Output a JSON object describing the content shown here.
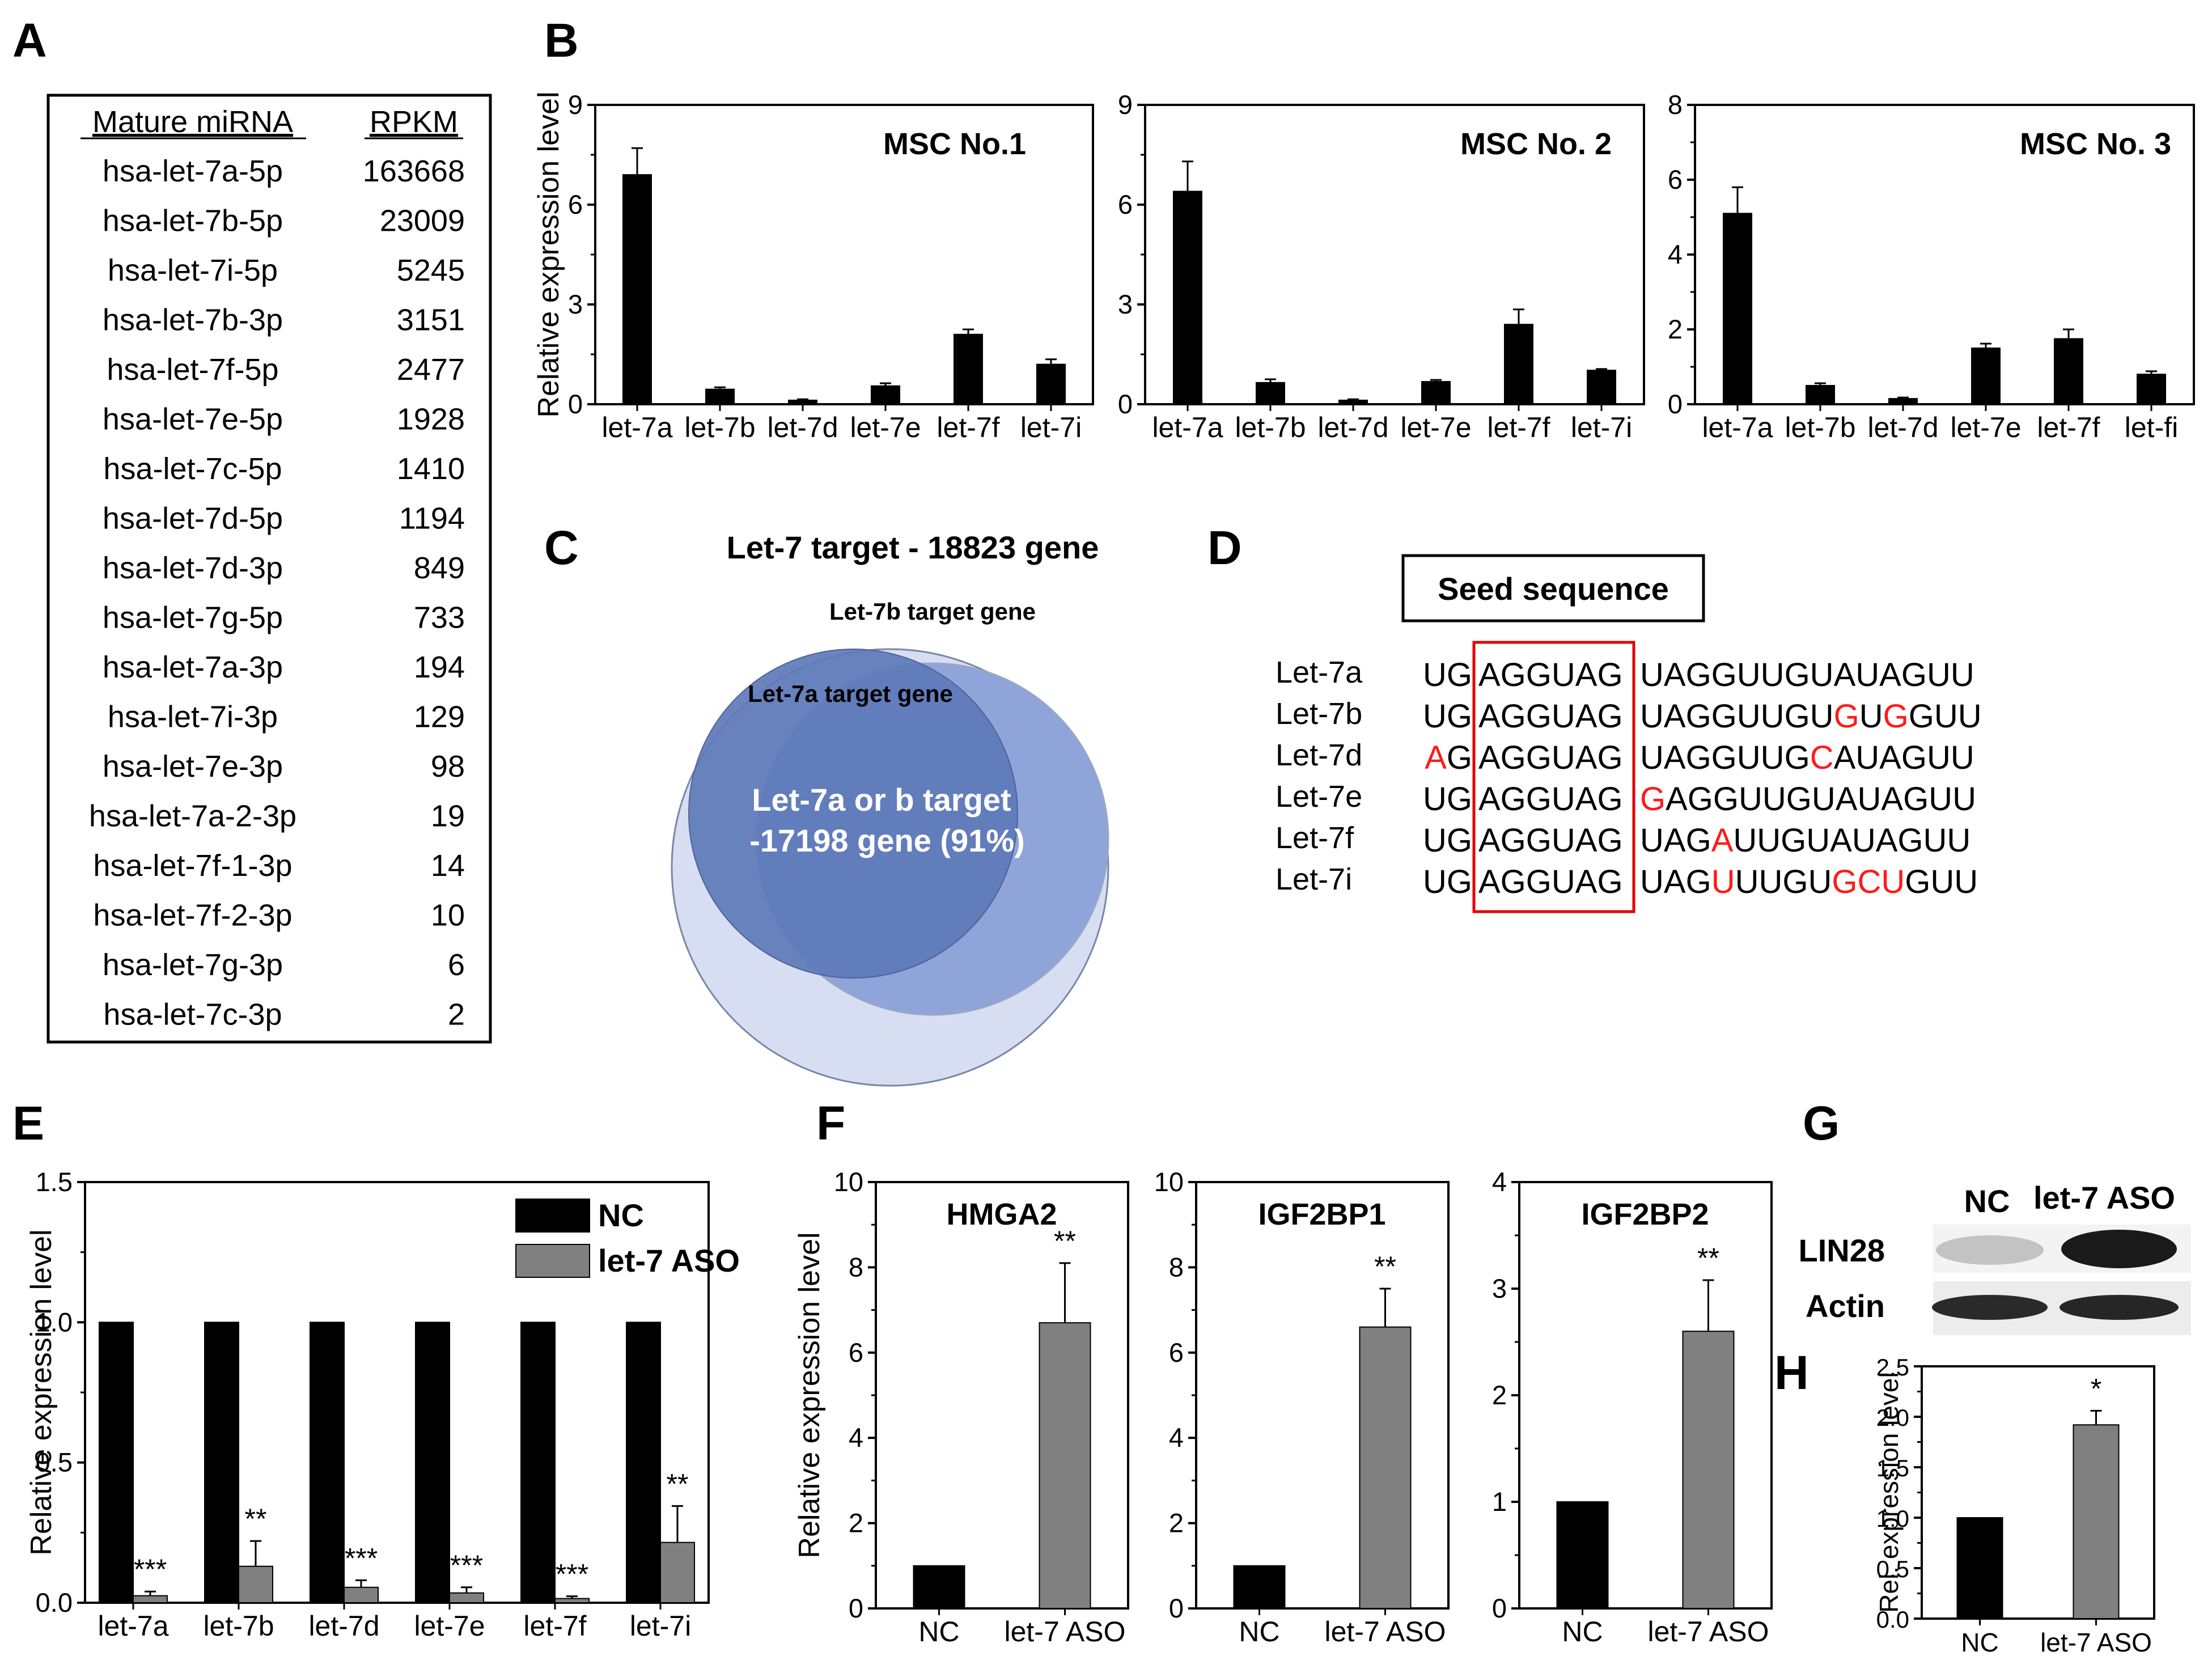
{
  "panel_labels": {
    "A": "A",
    "B": "B",
    "C": "C",
    "D": "D",
    "E": "E",
    "F": "F",
    "G": "G",
    "H": "H"
  },
  "colors": {
    "black": "#000000",
    "gray": "#808080",
    "red": "#ff1a1a",
    "venn_outer": "#d7def2",
    "venn_b": "#8fa4d9",
    "venn_a": "#5e79b8"
  },
  "table_A": {
    "headers": [
      "Mature miRNA",
      "RPKM"
    ],
    "rows": [
      [
        "hsa-let-7a-5p",
        "163668"
      ],
      [
        "hsa-let-7b-5p",
        "23009"
      ],
      [
        "hsa-let-7i-5p",
        "5245"
      ],
      [
        "hsa-let-7b-3p",
        "3151"
      ],
      [
        "hsa-let-7f-5p",
        "2477"
      ],
      [
        "hsa-let-7e-5p",
        "1928"
      ],
      [
        "hsa-let-7c-5p",
        "1410"
      ],
      [
        "hsa-let-7d-5p",
        "1194"
      ],
      [
        "hsa-let-7d-3p",
        "849"
      ],
      [
        "hsa-let-7g-5p",
        "733"
      ],
      [
        "hsa-let-7a-3p",
        "194"
      ],
      [
        "hsa-let-7i-3p",
        "129"
      ],
      [
        "hsa-let-7e-3p",
        "98"
      ],
      [
        "hsa-let-7a-2-3p",
        "19"
      ],
      [
        "hsa-let-7f-1-3p",
        "14"
      ],
      [
        "hsa-let-7f-2-3p",
        "10"
      ],
      [
        "hsa-let-7g-3p",
        "6"
      ],
      [
        "hsa-let-7c-3p",
        "2"
      ]
    ]
  },
  "chart_data": [
    {
      "id": "B1",
      "type": "bar",
      "title": "MSC No.1",
      "ylabel": "Relative expression level",
      "categories": [
        "let-7a",
        "let-7b",
        "let-7d",
        "let-7e",
        "let-7f",
        "let-7i"
      ],
      "values": [
        6.9,
        0.45,
        0.12,
        0.55,
        2.1,
        1.2
      ],
      "errors": [
        0.8,
        0.06,
        0.03,
        0.08,
        0.15,
        0.15
      ],
      "ylim": [
        0,
        9
      ],
      "yticks": [
        "0",
        "3",
        "6",
        "9"
      ],
      "color": "#000000"
    },
    {
      "id": "B2",
      "type": "bar",
      "title": "MSC No. 2",
      "ylabel": "",
      "categories": [
        "let-7a",
        "let-7b",
        "let-7d",
        "let-7e",
        "let-7f",
        "let-7i"
      ],
      "values": [
        6.4,
        0.65,
        0.12,
        0.68,
        2.4,
        1.02
      ],
      "errors": [
        0.9,
        0.1,
        0.03,
        0.05,
        0.45,
        0.04
      ],
      "ylim": [
        0,
        9
      ],
      "yticks": [
        "0",
        "3",
        "6",
        "9"
      ],
      "color": "#000000"
    },
    {
      "id": "B3",
      "type": "bar",
      "title": "MSC No. 3",
      "ylabel": "",
      "categories": [
        "let-7a",
        "let-7b",
        "let-7d",
        "let-7e",
        "let-7f",
        "let-fi"
      ],
      "values": [
        5.1,
        0.5,
        0.15,
        1.5,
        1.75,
        0.8
      ],
      "errors": [
        0.7,
        0.06,
        0.03,
        0.12,
        0.25,
        0.08
      ],
      "ylim": [
        0,
        8
      ],
      "yticks": [
        "0",
        "2",
        "4",
        "6",
        "8"
      ],
      "color": "#000000"
    },
    {
      "id": "E",
      "type": "bar",
      "title": "",
      "ylabel": "Relative expression level",
      "categories": [
        "let-7a",
        "let-7b",
        "let-7d",
        "let-7e",
        "let-7f",
        "let-7i"
      ],
      "series": [
        {
          "name": "NC",
          "values": [
            1,
            1,
            1,
            1,
            1,
            1
          ],
          "errors": [
            0,
            0,
            0,
            0,
            0,
            0
          ],
          "color": "#000000"
        },
        {
          "name": "let-7 ASO",
          "values": [
            0.025,
            0.13,
            0.055,
            0.035,
            0.015,
            0.215
          ],
          "errors": [
            0.015,
            0.09,
            0.025,
            0.02,
            0.008,
            0.13
          ],
          "color": "#808080"
        }
      ],
      "significance": [
        "***",
        "**",
        "***",
        "***",
        "***",
        "**"
      ],
      "ylim": [
        0,
        1.5
      ],
      "yticks": [
        "0.0",
        "0.5",
        "1.0",
        "1.5"
      ],
      "legend": "top-right"
    },
    {
      "id": "F1",
      "type": "bar",
      "title": "HMGA2",
      "ylabel": "Relative expression level",
      "categories": [
        "NC",
        "let-7 ASO"
      ],
      "values": [
        1,
        6.7
      ],
      "errors": [
        0,
        1.4
      ],
      "colors": [
        "#000000",
        "#808080"
      ],
      "significance": [
        "",
        "**"
      ],
      "ylim": [
        0,
        10
      ],
      "yticks": [
        "0",
        "2",
        "4",
        "6",
        "8",
        "10"
      ]
    },
    {
      "id": "F2",
      "type": "bar",
      "title": "IGF2BP1",
      "ylabel": "",
      "categories": [
        "NC",
        "let-7 ASO"
      ],
      "values": [
        1,
        6.6
      ],
      "errors": [
        0,
        0.9
      ],
      "colors": [
        "#000000",
        "#808080"
      ],
      "significance": [
        "",
        "**"
      ],
      "ylim": [
        0,
        10
      ],
      "yticks": [
        "0",
        "2",
        "4",
        "6",
        "8",
        "10"
      ]
    },
    {
      "id": "F3",
      "type": "bar",
      "title": "IGF2BP2",
      "ylabel": "",
      "categories": [
        "NC",
        "let-7 ASO"
      ],
      "values": [
        1,
        2.6
      ],
      "errors": [
        0,
        0.48
      ],
      "colors": [
        "#000000",
        "#808080"
      ],
      "significance": [
        "",
        "**"
      ],
      "ylim": [
        0,
        4
      ],
      "yticks": [
        "0",
        "1",
        "2",
        "3",
        "4"
      ]
    },
    {
      "id": "H",
      "type": "bar",
      "title": "",
      "ylabel": "Rel. expression level",
      "categories": [
        "NC",
        "let-7 ASO"
      ],
      "values": [
        1,
        1.92
      ],
      "errors": [
        0,
        0.14
      ],
      "colors": [
        "#000000",
        "#808080"
      ],
      "significance": [
        "",
        "*"
      ],
      "ylim": [
        0,
        2.5
      ],
      "yticks": [
        "0.0",
        "0.5",
        "1.0",
        "1.5",
        "2.0",
        "2.5"
      ]
    }
  ],
  "venn_C": {
    "title": "Let-7 target - 18823 gene",
    "outer_label": "Let-7b target gene",
    "inner_label": "Let-7a target gene",
    "center_line1": "Let-7a or b target",
    "center_line2": "-17198 gene (91%)"
  },
  "seed_D": {
    "box_title": "Seed sequence",
    "rows": [
      {
        "name": "Let-7a",
        "prefix": [
          [
            "UG",
            false
          ]
        ],
        "seed": "AGGUAG",
        "rest": [
          [
            "UAGGUUGUAUAGUU",
            false
          ]
        ]
      },
      {
        "name": "Let-7b",
        "prefix": [
          [
            "UG",
            false
          ]
        ],
        "seed": "AGGUAG",
        "rest": [
          [
            "UAGGUUGU",
            false
          ],
          [
            "G",
            true
          ],
          [
            "U",
            false
          ],
          [
            "G",
            true
          ],
          [
            "GUU",
            false
          ]
        ]
      },
      {
        "name": "Let-7d",
        "prefix": [
          [
            "A",
            true
          ],
          [
            "G",
            false
          ]
        ],
        "seed": "AGGUAG",
        "rest": [
          [
            "UAGGUUG",
            false
          ],
          [
            "C",
            true
          ],
          [
            "AUAGUU",
            false
          ]
        ]
      },
      {
        "name": "Let-7e",
        "prefix": [
          [
            "UG",
            false
          ]
        ],
        "seed": "AGGUAG",
        "rest": [
          [
            "G",
            true
          ],
          [
            "AGGUUGUAUAGUU",
            false
          ]
        ]
      },
      {
        "name": "Let-7f",
        "prefix": [
          [
            "UG",
            false
          ]
        ],
        "seed": "AGGUAG",
        "rest": [
          [
            "UAG",
            false
          ],
          [
            "A",
            true
          ],
          [
            "UUGUAUAGUU",
            false
          ]
        ]
      },
      {
        "name": "Let-7i",
        "prefix": [
          [
            "UG",
            false
          ]
        ],
        "seed": "AGGUAG",
        "rest": [
          [
            "UAG",
            false
          ],
          [
            "U",
            true
          ],
          [
            "UUGU",
            false
          ],
          [
            "GCU",
            true
          ],
          [
            "GUU",
            false
          ]
        ]
      }
    ]
  },
  "blot_G": {
    "col_labels": [
      "NC",
      "let-7 ASO"
    ],
    "row_labels": [
      "LIN28",
      "Actin"
    ]
  }
}
